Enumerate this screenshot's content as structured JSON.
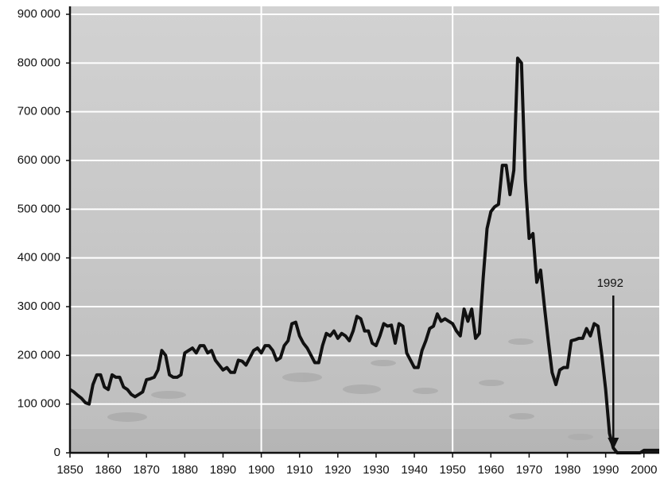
{
  "chart_data": {
    "type": "line",
    "x": [
      1850,
      1851,
      1852,
      1853,
      1854,
      1855,
      1856,
      1857,
      1858,
      1859,
      1860,
      1861,
      1862,
      1863,
      1864,
      1865,
      1866,
      1867,
      1868,
      1869,
      1870,
      1871,
      1872,
      1873,
      1874,
      1875,
      1876,
      1877,
      1878,
      1879,
      1880,
      1881,
      1882,
      1883,
      1884,
      1885,
      1886,
      1887,
      1888,
      1889,
      1890,
      1891,
      1892,
      1893,
      1894,
      1895,
      1896,
      1897,
      1898,
      1899,
      1900,
      1901,
      1902,
      1903,
      1904,
      1905,
      1906,
      1907,
      1908,
      1909,
      1910,
      1911,
      1912,
      1913,
      1914,
      1915,
      1916,
      1917,
      1918,
      1919,
      1920,
      1921,
      1922,
      1923,
      1924,
      1925,
      1926,
      1927,
      1928,
      1929,
      1930,
      1931,
      1932,
      1933,
      1934,
      1935,
      1936,
      1937,
      1938,
      1939,
      1940,
      1941,
      1942,
      1943,
      1944,
      1945,
      1946,
      1947,
      1948,
      1949,
      1950,
      1951,
      1952,
      1953,
      1954,
      1955,
      1956,
      1957,
      1958,
      1959,
      1960,
      1961,
      1962,
      1963,
      1964,
      1965,
      1966,
      1967,
      1968,
      1969,
      1970,
      1971,
      1972,
      1973,
      1974,
      1975,
      1976,
      1977,
      1978,
      1979,
      1980,
      1981,
      1982,
      1983,
      1984,
      1985,
      1986,
      1987,
      1988,
      1989,
      1990,
      1991,
      1992,
      1993,
      1994,
      1995,
      1996,
      1997,
      1998,
      1999,
      2000,
      2001,
      2002,
      2003,
      2004
    ],
    "values": [
      130000,
      125000,
      118000,
      112000,
      103000,
      100000,
      140000,
      160000,
      160000,
      135000,
      130000,
      160000,
      155000,
      155000,
      135000,
      130000,
      120000,
      115000,
      120000,
      125000,
      150000,
      152000,
      155000,
      170000,
      210000,
      200000,
      160000,
      155000,
      155000,
      160000,
      205000,
      210000,
      215000,
      205000,
      220000,
      220000,
      205000,
      210000,
      190000,
      180000,
      170000,
      175000,
      165000,
      165000,
      190000,
      188000,
      180000,
      195000,
      210000,
      215000,
      205000,
      220000,
      220000,
      210000,
      190000,
      195000,
      220000,
      230000,
      265000,
      268000,
      240000,
      225000,
      215000,
      200000,
      185000,
      185000,
      220000,
      245000,
      240000,
      250000,
      235000,
      245000,
      240000,
      230000,
      250000,
      280000,
      275000,
      250000,
      250000,
      225000,
      220000,
      240000,
      265000,
      260000,
      262000,
      225000,
      265000,
      260000,
      205000,
      190000,
      175000,
      175000,
      210000,
      230000,
      255000,
      260000,
      285000,
      270000,
      275000,
      270000,
      265000,
      250000,
      240000,
      295000,
      270000,
      295000,
      235000,
      245000,
      360000,
      460000,
      495000,
      505000,
      510000,
      590000,
      590000,
      530000,
      580000,
      810000,
      800000,
      560000,
      440000,
      450000,
      350000,
      375000,
      300000,
      230000,
      165000,
      140000,
      170000,
      175000,
      175000,
      230000,
      232000,
      235000,
      235000,
      255000,
      240000,
      265000,
      260000,
      200000,
      130000,
      40000,
      10000,
      0,
      0,
      0,
      0,
      0,
      0,
      0,
      5000,
      5000,
      5000,
      5000,
      5000
    ],
    "color": "#111111",
    "xlim": [
      1850,
      2004
    ],
    "ylim": [
      0,
      900000
    ],
    "xticks": [
      1850,
      1860,
      1870,
      1880,
      1890,
      1900,
      1910,
      1920,
      1930,
      1940,
      1950,
      1960,
      1970,
      1980,
      1990,
      2000
    ],
    "yticks": [
      {
        "value": 0,
        "label": "0"
      },
      {
        "value": 100000,
        "label": "100 000"
      },
      {
        "value": 200000,
        "label": "200 000"
      },
      {
        "value": 300000,
        "label": "300 000"
      },
      {
        "value": 400000,
        "label": "400 000"
      },
      {
        "value": 500000,
        "label": "500 000"
      },
      {
        "value": 600000,
        "label": "600 000"
      },
      {
        "value": 700000,
        "label": "700 000"
      },
      {
        "value": 800000,
        "label": "800 000"
      },
      {
        "value": 900000,
        "label": "900 000"
      }
    ],
    "xgrid": [
      1900,
      1950
    ],
    "grid": true,
    "annotation": {
      "x": 1992
    }
  }
}
